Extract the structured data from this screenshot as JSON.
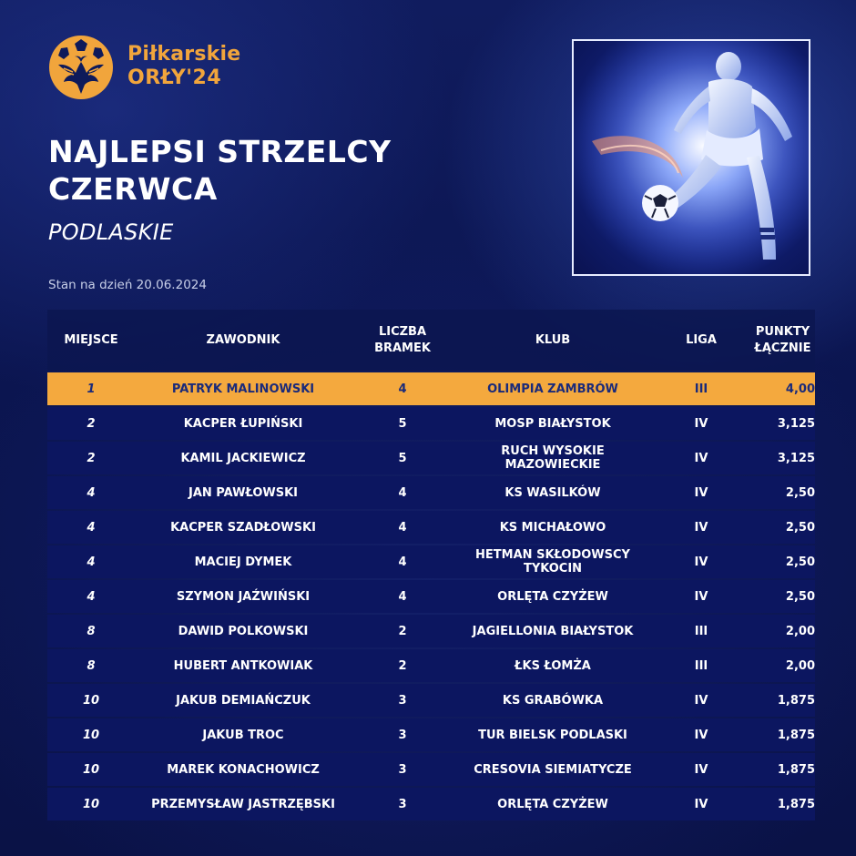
{
  "brand": {
    "line1": "Piłkarskie",
    "line2": "ORŁY'24",
    "color": "#f1a53c"
  },
  "title_line1": "NAJLEPSI STRZELCY",
  "title_line2": "CZERWCA",
  "region": "PODLASKIE",
  "date_text": "Stan na dzień 20.06.2024",
  "table": {
    "headers": {
      "place": "MIEJSCE",
      "player": "ZAWODNIK",
      "goals_line1": "LICZBA",
      "goals_line2": "BRAMEK",
      "club": "KLUB",
      "league": "LIGA",
      "points_line1": "PUNKTY",
      "points_line2": "ŁĄCZNIE"
    },
    "rows": [
      {
        "place": "1",
        "player": "PATRYK MALINOWSKI",
        "goals": "4",
        "club": "OLIMPIA ZAMBRÓW",
        "league": "III",
        "points": "4,00"
      },
      {
        "place": "2",
        "player": "KACPER ŁUPIŃSKI",
        "goals": "5",
        "club": "MOSP BIAŁYSTOK",
        "league": "IV",
        "points": "3,125"
      },
      {
        "place": "2",
        "player": "KAMIL JACKIEWICZ",
        "goals": "5",
        "club": "RUCH WYSOKIE MAZOWIECKIE",
        "league": "IV",
        "points": "3,125"
      },
      {
        "place": "4",
        "player": "JAN PAWŁOWSKI",
        "goals": "4",
        "club": "KS WASILKÓW",
        "league": "IV",
        "points": "2,50"
      },
      {
        "place": "4",
        "player": "KACPER SZADŁOWSKI",
        "goals": "4",
        "club": "KS MICHAŁOWO",
        "league": "IV",
        "points": "2,50"
      },
      {
        "place": "4",
        "player": "MACIEJ DYMEK",
        "goals": "4",
        "club": "HETMAN SKŁODOWSCY TYKOCIN",
        "league": "IV",
        "points": "2,50"
      },
      {
        "place": "4",
        "player": "SZYMON JAŹWIŃSKI",
        "goals": "4",
        "club": "ORLĘTA CZYŻEW",
        "league": "IV",
        "points": "2,50"
      },
      {
        "place": "8",
        "player": "DAWID POLKOWSKI",
        "goals": "2",
        "club": "JAGIELLONIA BIAŁYSTOK",
        "league": "III",
        "points": "2,00"
      },
      {
        "place": "8",
        "player": "HUBERT ANTKOWIAK",
        "goals": "2",
        "club": "ŁKS ŁOMŻA",
        "league": "III",
        "points": "2,00"
      },
      {
        "place": "10",
        "player": "JAKUB DEMIAŃCZUK",
        "goals": "3",
        "club": "KS GRABÓWKA",
        "league": "IV",
        "points": "1,875"
      },
      {
        "place": "10",
        "player": "JAKUB TROC",
        "goals": "3",
        "club": "TUR BIELSK PODLASKI",
        "league": "IV",
        "points": "1,875"
      },
      {
        "place": "10",
        "player": "MAREK KONACHOWICZ",
        "goals": "3",
        "club": "CRESOVIA SIEMIATYCZE",
        "league": "IV",
        "points": "1,875"
      },
      {
        "place": "10",
        "player": "PRZEMYSŁAW JASTRZĘBSKI",
        "goals": "3",
        "club": "ORLĘTA CZYŻEW",
        "league": "IV",
        "points": "1,875"
      }
    ]
  },
  "colors": {
    "background": "#0b1447",
    "row_background": "#0c1660",
    "highlight_row": "#f4a93e",
    "highlight_text": "#1a2a7a"
  },
  "icons": {
    "logo": "eagle-football-logo-icon",
    "hero": "football-player-kick-illustration"
  }
}
